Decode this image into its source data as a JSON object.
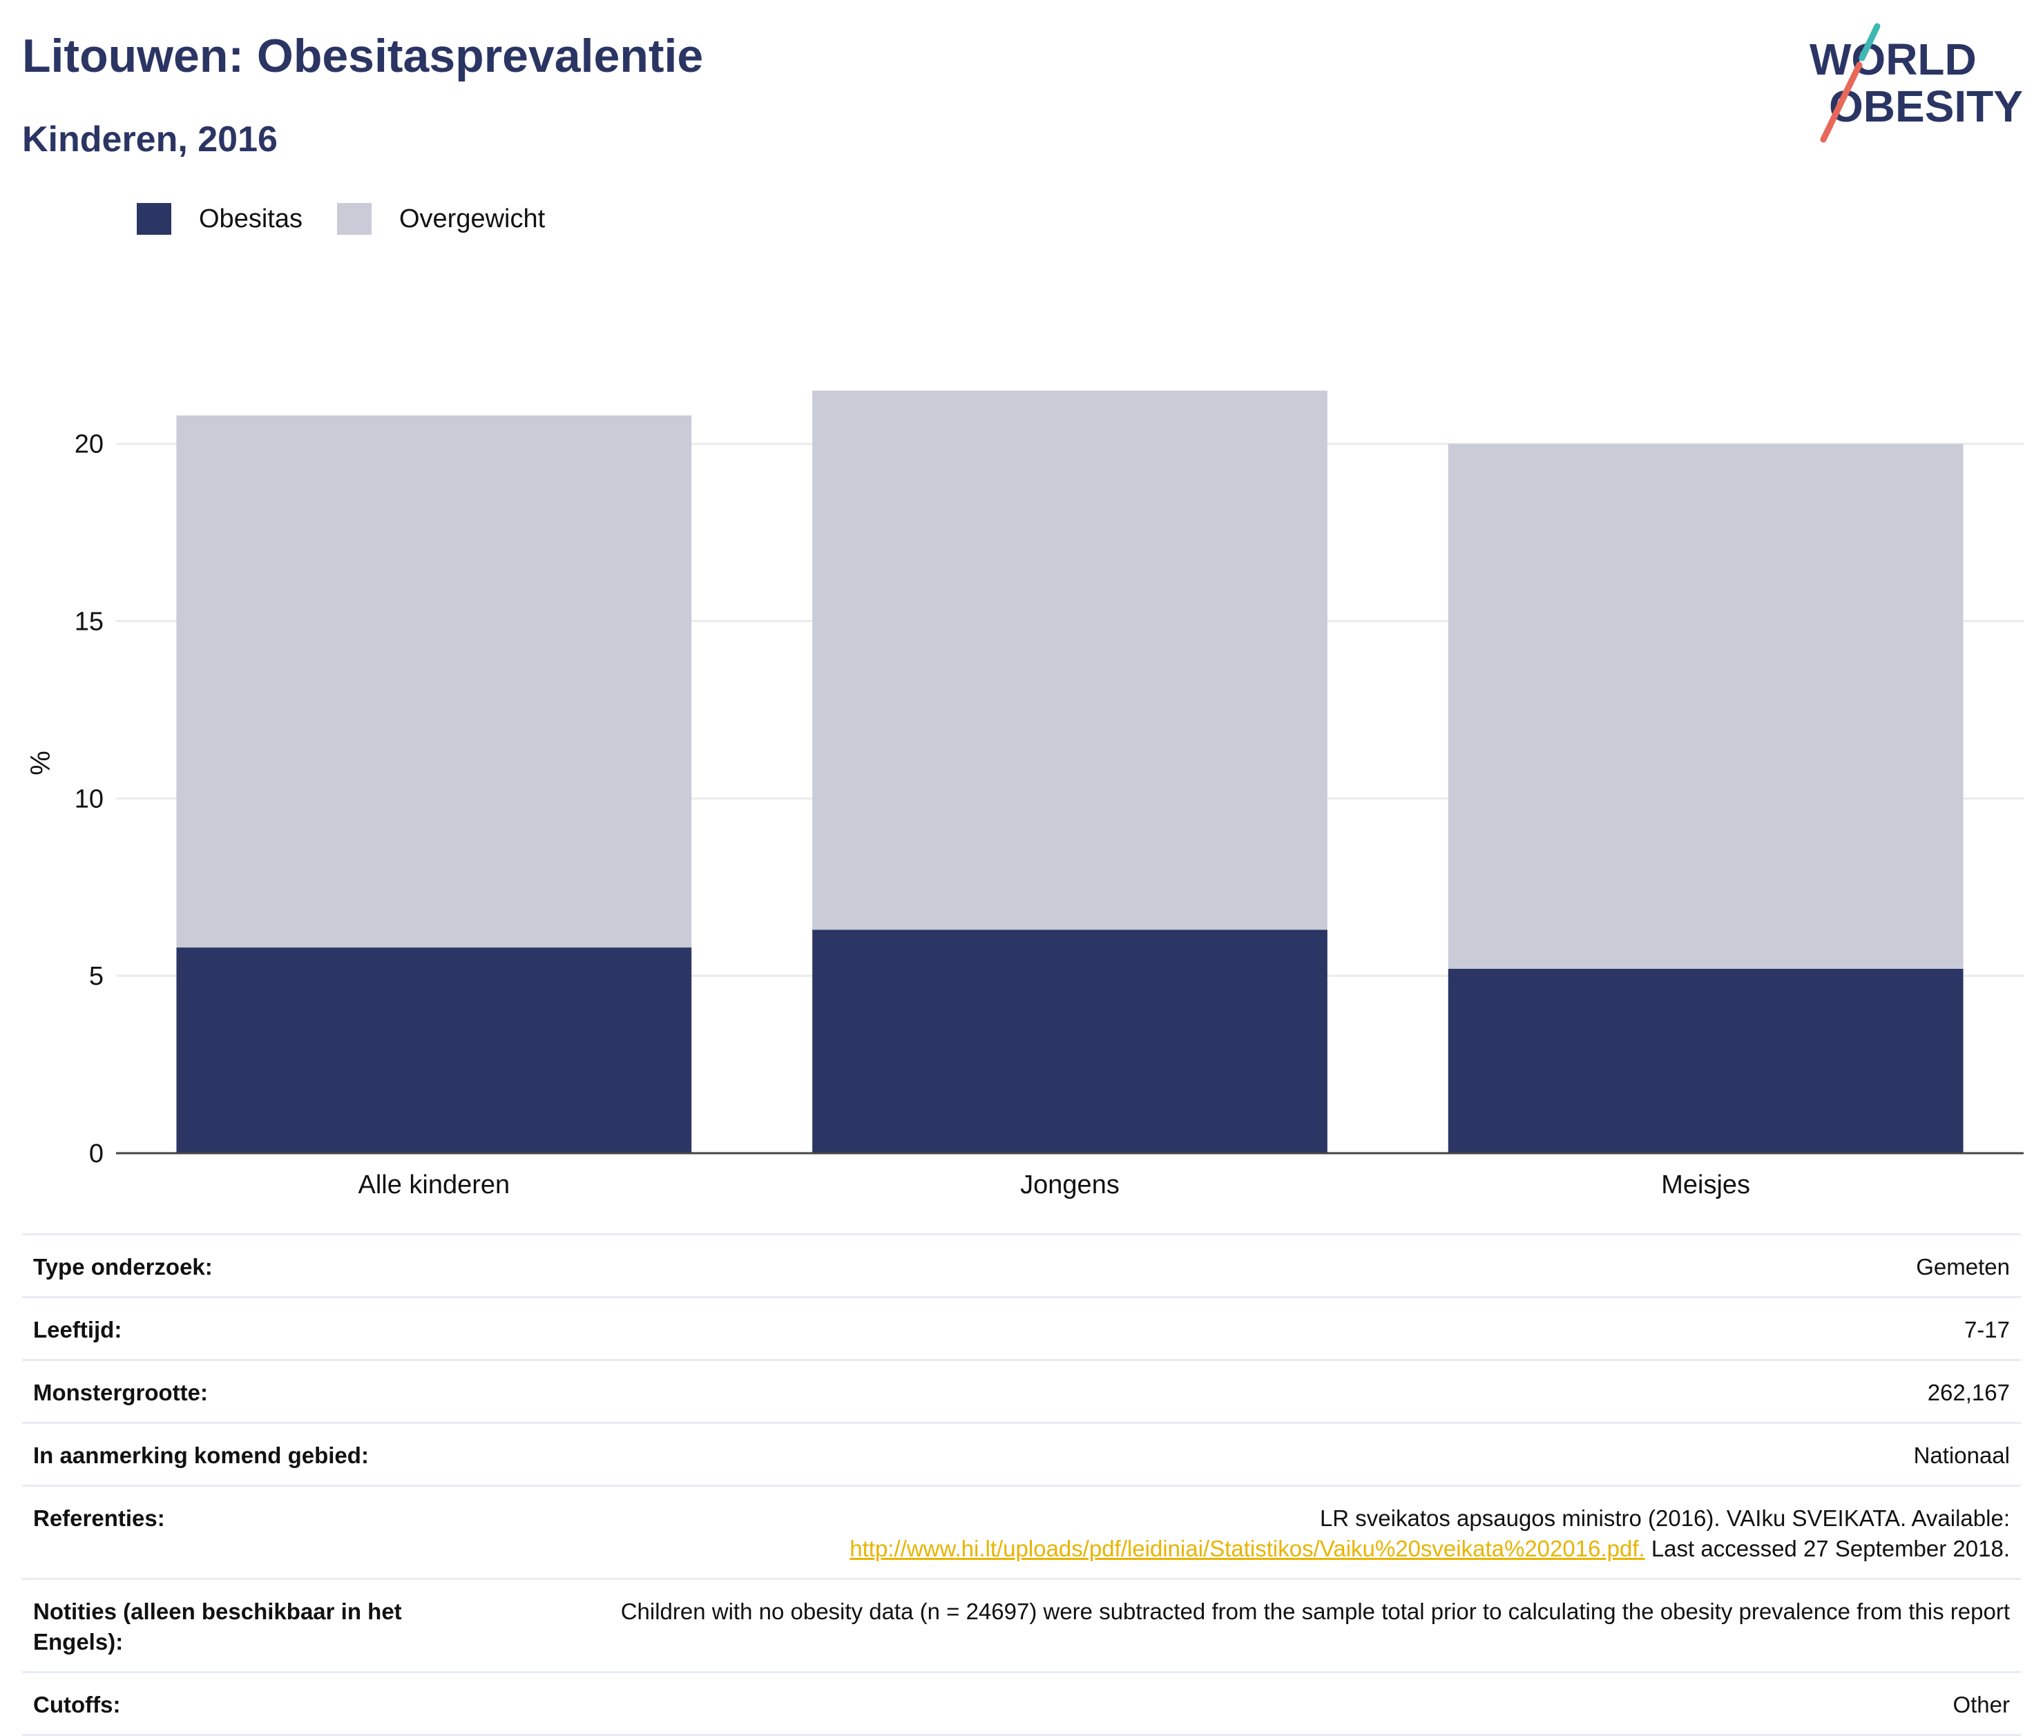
{
  "header": {
    "title": "Litouwen: Obesitasprevalentie",
    "subtitle": "Kinderen, 2016"
  },
  "logo": {
    "line1": "WORLD",
    "line2": "OBESITY"
  },
  "legend": [
    {
      "label": "Obesitas",
      "color": "#2b3664"
    },
    {
      "label": "Overgewicht",
      "color": "#c9cbd7"
    }
  ],
  "chart_data": {
    "type": "bar",
    "stacked": true,
    "categories": [
      "Alle kinderen",
      "Jongens",
      "Meisjes"
    ],
    "series": [
      {
        "name": "Obesitas",
        "values": [
          5.8,
          6.3,
          5.2
        ],
        "color": "#2b3664"
      },
      {
        "name": "Overgewicht",
        "values": [
          15.0,
          15.2,
          14.8
        ],
        "color": "#c9cbd7"
      }
    ],
    "ylabel": "%",
    "ylim": [
      0,
      22
    ],
    "yticks": [
      0,
      5,
      10,
      15,
      20
    ],
    "grid": true,
    "legend_position": "top-left"
  },
  "info": [
    {
      "label": "Type onderzoek:",
      "value": "Gemeten"
    },
    {
      "label": "Leeftijd:",
      "value": "7-17"
    },
    {
      "label": "Monstergrootte:",
      "value": "262,167"
    },
    {
      "label": "In aanmerking komend gebied:",
      "value": "Nationaal"
    },
    {
      "label": "Referenties:",
      "value_prefix": "LR sveikatos apsaugos ministro (2016). VAIku SVEIKATA. Available:",
      "link": "http://www.hi.lt/uploads/pdf/leidiniai/Statistikos/Vaiku%20sveikata%202016.pdf.",
      "value_suffix": "Last accessed 27 September 2018."
    },
    {
      "label": "Notities (alleen beschikbaar in het Engels):",
      "value": "Children with no obesity data (n = 24697) were subtracted from the sample total prior to calculating the obesity prevalence from this report"
    },
    {
      "label": "Cutoffs:",
      "value": "Other"
    }
  ]
}
